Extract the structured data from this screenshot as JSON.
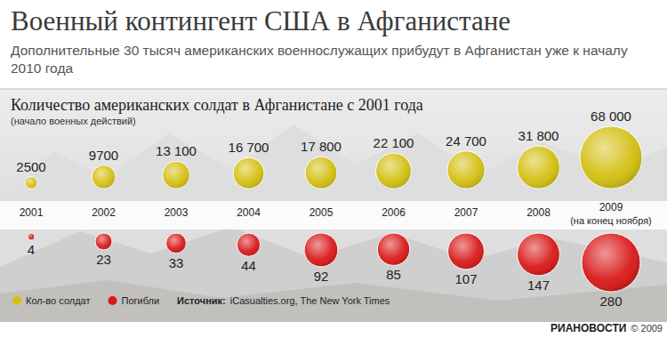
{
  "chart_data": {
    "type": "bubble",
    "title": "Военный контингент США в Афганистане",
    "subtitle": "Дополнительные 30 тысяч американских военнослужащих прибудут в Афганистан уже к началу 2010 года",
    "annotations": [
      "Количество американских солдат в Афганистане с 2001 года",
      "(начало военных действий)",
      "(на конец ноября)",
      "Источник:",
      "iCasualties.org, The New York Times",
      "РИАНОВОСТИ",
      "© 2009"
    ],
    "categories": [
      "2001",
      "2002",
      "2003",
      "2004",
      "2005",
      "2006",
      "2007",
      "2008",
      "2009"
    ],
    "series": [
      {
        "name": "Кол-во солдат",
        "color": "#d4bf12",
        "values": [
          2500,
          9700,
          13100,
          16700,
          17800,
          22100,
          24700,
          31800,
          68000
        ],
        "value_labels": [
          "2500",
          "9700",
          "13 100",
          "16 700",
          "17 800",
          "22 100",
          "24 700",
          "31 800",
          "68 000"
        ]
      },
      {
        "name": "Погибли",
        "color": "#d91a1a",
        "values": [
          4,
          23,
          33,
          44,
          92,
          85,
          107,
          147,
          280
        ]
      }
    ],
    "data_labels": true,
    "tick_labels": "x",
    "legend": "bottom-left"
  }
}
